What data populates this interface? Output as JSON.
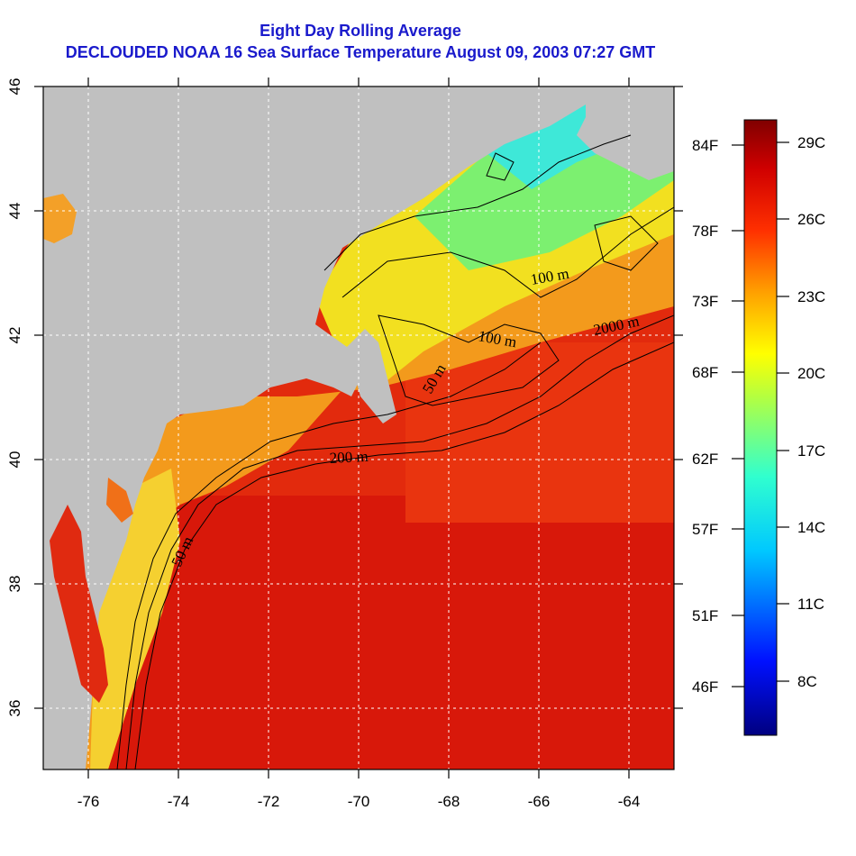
{
  "title": {
    "line1": "Eight Day Rolling Average",
    "line2": "DECLOUDED NOAA 16 Sea Surface Temperature August 09, 2003 07:27 GMT"
  },
  "map": {
    "lon_ticks": [
      "-76",
      "-74",
      "-72",
      "-70",
      "-68",
      "-66",
      "-64"
    ],
    "lat_ticks": [
      "46",
      "44",
      "42",
      "40",
      "38",
      "36"
    ],
    "contour_labels": [
      "100 m",
      "2000 m",
      "100 m",
      "50 m",
      "200 m",
      "50 m"
    ]
  },
  "colorbar": {
    "fahrenheit_labels": [
      "84F",
      "78F",
      "73F",
      "68F",
      "62F",
      "57F",
      "51F",
      "46F"
    ],
    "celsius_labels": [
      "29C",
      "26C",
      "23C",
      "20C",
      "17C",
      "14C",
      "11C",
      "8C"
    ]
  },
  "colors": {
    "land": "#c0c0c0",
    "warm_water": "#e8220c",
    "hot_water": "#d4100a",
    "title_blue": "#1a1acc"
  }
}
